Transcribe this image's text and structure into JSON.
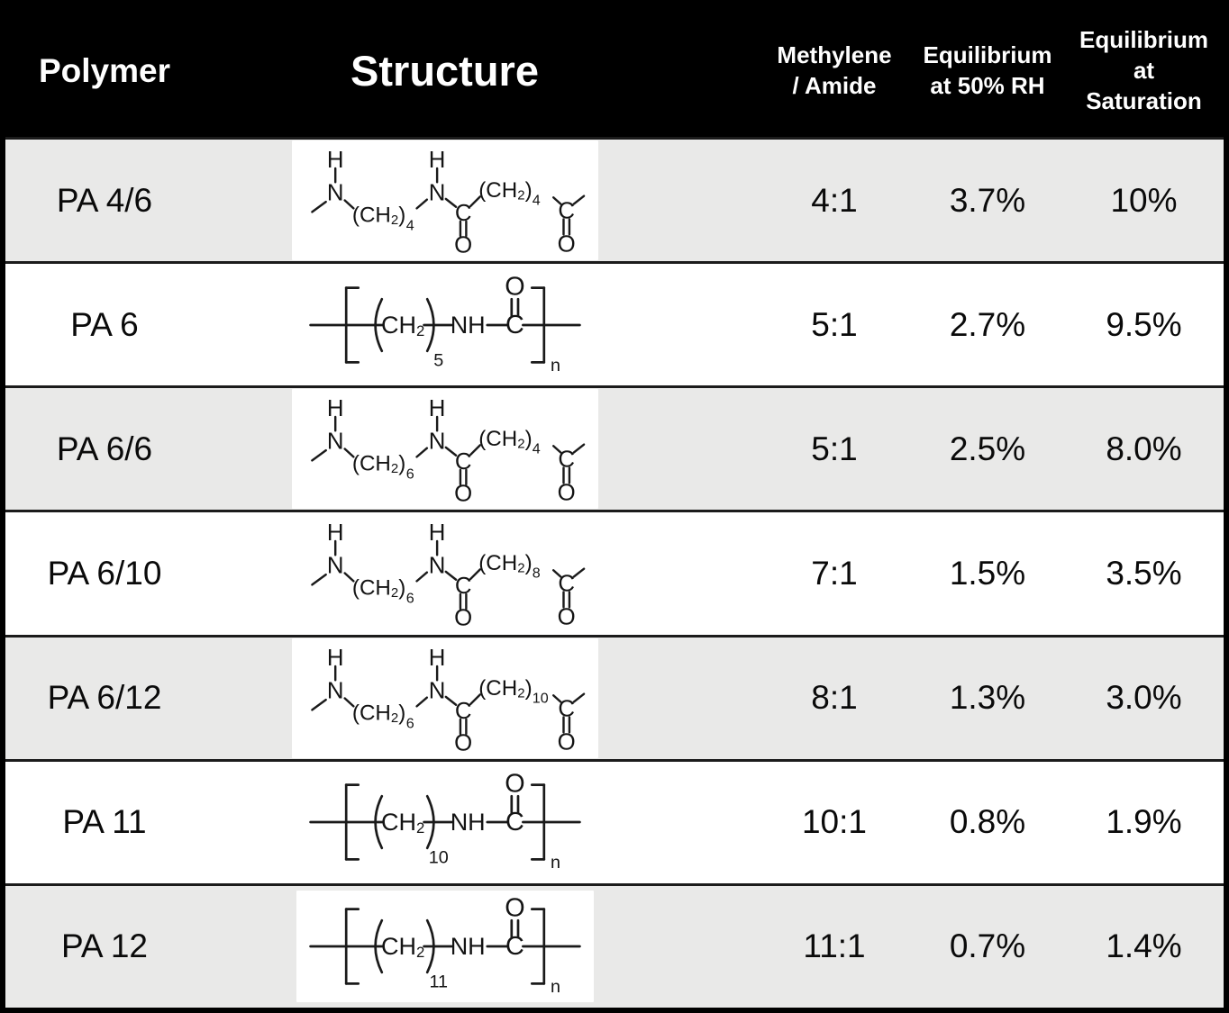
{
  "header": {
    "polymer": "Polymer",
    "structure": "Structure",
    "methylene_amide_lines": [
      "Methylene",
      "/ Amide"
    ],
    "eq_50rh_lines": [
      "Equilibrium",
      "at 50% RH"
    ],
    "eq_sat_lines": [
      "Equilibrium",
      "at",
      "Saturation"
    ]
  },
  "rows": [
    {
      "polymer": "PA 4/6",
      "methylene_amide": "4:1",
      "eq_50rh": "3.7%",
      "eq_sat": "10%",
      "structure": {
        "type": "diamine_diacid",
        "amine_ch2": "4",
        "acid_ch2": "4",
        "boxed": true,
        "formula": "~NH-(CH2)4-NH-C(=O)-(CH2)4-C(=O)~"
      }
    },
    {
      "polymer": "PA 6",
      "methylene_amide": "5:1",
      "eq_50rh": "2.7%",
      "eq_sat": "9.5%",
      "structure": {
        "type": "lactam_repeat",
        "ch2": "5",
        "boxed": false,
        "formula": "[-(CH2)5-NH-C(=O)-]n"
      }
    },
    {
      "polymer": "PA 6/6",
      "methylene_amide": "5:1",
      "eq_50rh": "2.5%",
      "eq_sat": "8.0%",
      "structure": {
        "type": "diamine_diacid",
        "amine_ch2": "6",
        "acid_ch2": "4",
        "boxed": true,
        "formula": "~NH-(CH2)6-NH-C(=O)-(CH2)4-C(=O)~"
      }
    },
    {
      "polymer": "PA 6/10",
      "methylene_amide": "7:1",
      "eq_50rh": "1.5%",
      "eq_sat": "3.5%",
      "structure": {
        "type": "diamine_diacid",
        "amine_ch2": "6",
        "acid_ch2": "8",
        "boxed": false,
        "formula": "~NH-(CH2)6-NH-C(=O)-(CH2)8-C(=O)~"
      }
    },
    {
      "polymer": "PA 6/12",
      "methylene_amide": "8:1",
      "eq_50rh": "1.3%",
      "eq_sat": "3.0%",
      "structure": {
        "type": "diamine_diacid",
        "amine_ch2": "6",
        "acid_ch2": "10",
        "boxed": true,
        "formula": "~NH-(CH2)6-NH-C(=O)-(CH2)10-C(=O)~"
      }
    },
    {
      "polymer": "PA 11",
      "methylene_amide": "10:1",
      "eq_50rh": "0.8%",
      "eq_sat": "1.9%",
      "structure": {
        "type": "lactam_repeat",
        "ch2": "10",
        "boxed": false,
        "formula": "[-(CH2)10-NH-C(=O)-]n"
      }
    },
    {
      "polymer": "PA 12",
      "methylene_amide": "11:1",
      "eq_50rh": "0.7%",
      "eq_sat": "1.4%",
      "structure": {
        "type": "lactam_repeat",
        "ch2": "11",
        "boxed": true,
        "formula": "[-(CH2)11-NH-C(=O)-]n"
      }
    }
  ],
  "structure_glyphs": {
    "h_atom": "H",
    "n_atom": "N",
    "c_atom": "C",
    "o_atom": "O",
    "ch_open": "(CH",
    "ch": "CH",
    "sub2": "2",
    "close_paren": ")",
    "nh": "NH",
    "repeat_sub": "n"
  },
  "colors": {
    "header_bg": "#000000",
    "header_text": "#ffffff",
    "row_bg": "#ffffff",
    "row_alt_bg": "#e9e9e8",
    "border": "#1b1b1b",
    "structure_ink": "#1a1a1a",
    "structure_box_bg": "#ffffff"
  }
}
